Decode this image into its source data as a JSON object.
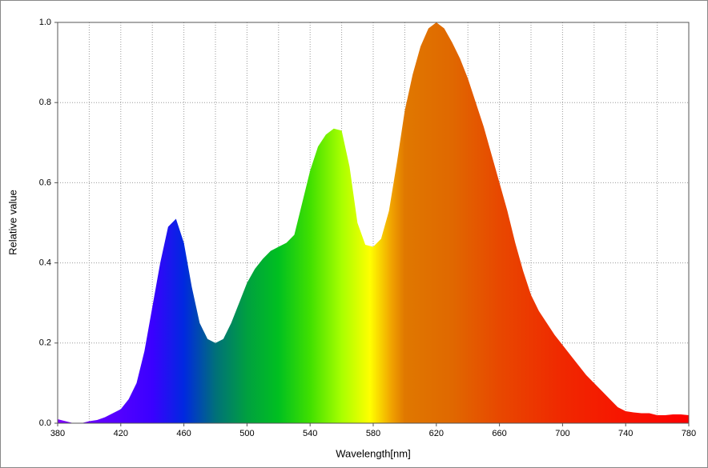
{
  "chart_data": {
    "type": "area",
    "x_label": "Wavelength[nm]",
    "y_label": "Relative value",
    "x": [
      380,
      385,
      390,
      395,
      400,
      405,
      410,
      415,
      420,
      425,
      430,
      435,
      440,
      445,
      450,
      455,
      460,
      465,
      470,
      475,
      480,
      485,
      490,
      495,
      500,
      505,
      510,
      515,
      520,
      525,
      530,
      535,
      540,
      545,
      550,
      555,
      560,
      565,
      570,
      575,
      580,
      585,
      590,
      595,
      600,
      605,
      610,
      615,
      620,
      625,
      630,
      635,
      640,
      645,
      650,
      655,
      660,
      665,
      670,
      675,
      680,
      685,
      690,
      695,
      700,
      705,
      710,
      715,
      720,
      725,
      730,
      735,
      740,
      745,
      750,
      755,
      760,
      765,
      770,
      775,
      780
    ],
    "values": [
      0.01,
      0.005,
      0,
      0,
      0.005,
      0.008,
      0.015,
      0.025,
      0.035,
      0.06,
      0.1,
      0.18,
      0.29,
      0.4,
      0.49,
      0.51,
      0.45,
      0.34,
      0.25,
      0.21,
      0.2,
      0.21,
      0.25,
      0.3,
      0.35,
      0.385,
      0.41,
      0.43,
      0.44,
      0.45,
      0.47,
      0.55,
      0.63,
      0.69,
      0.72,
      0.735,
      0.73,
      0.64,
      0.5,
      0.445,
      0.44,
      0.46,
      0.53,
      0.65,
      0.78,
      0.87,
      0.94,
      0.985,
      1.0,
      0.985,
      0.95,
      0.91,
      0.86,
      0.8,
      0.74,
      0.67,
      0.6,
      0.53,
      0.45,
      0.38,
      0.32,
      0.28,
      0.25,
      0.22,
      0.195,
      0.17,
      0.145,
      0.12,
      0.1,
      0.08,
      0.06,
      0.04,
      0.03,
      0.027,
      0.025,
      0.025,
      0.02,
      0.02,
      0.022,
      0.022,
      0.02
    ],
    "fill_stops": [
      {
        "x": 380,
        "color": "#8000ff"
      },
      {
        "x": 440,
        "color": "#3a00ff"
      },
      {
        "x": 460,
        "color": "#0028e0"
      },
      {
        "x": 480,
        "color": "#00707a"
      },
      {
        "x": 500,
        "color": "#00a040"
      },
      {
        "x": 520,
        "color": "#00c020"
      },
      {
        "x": 540,
        "color": "#40e000"
      },
      {
        "x": 560,
        "color": "#a8ff00"
      },
      {
        "x": 578,
        "color": "#ffff00"
      },
      {
        "x": 592,
        "color": "#f0a000"
      },
      {
        "x": 600,
        "color": "#e07800"
      },
      {
        "x": 630,
        "color": "#e06800"
      },
      {
        "x": 660,
        "color": "#e84800"
      },
      {
        "x": 700,
        "color": "#f02800"
      },
      {
        "x": 780,
        "color": "#ff0000"
      }
    ],
    "xlim": [
      380,
      780
    ],
    "ylim": [
      0,
      1
    ],
    "xticks": [
      380,
      420,
      460,
      500,
      540,
      580,
      620,
      660,
      700,
      740,
      780
    ],
    "xgrid": [
      380,
      400,
      420,
      440,
      460,
      480,
      500,
      520,
      540,
      560,
      580,
      600,
      620,
      640,
      660,
      680,
      700,
      720,
      740,
      760,
      780
    ],
    "yticks": [
      {
        "value": 0,
        "label": "0.0"
      },
      {
        "value": 0.2,
        "label": "0.2"
      },
      {
        "value": 0.4,
        "label": "0.4"
      },
      {
        "value": 0.6,
        "label": "0.6"
      },
      {
        "value": 0.8,
        "label": "0.8"
      },
      {
        "value": 1,
        "label": "1.0"
      }
    ],
    "grid": true
  }
}
